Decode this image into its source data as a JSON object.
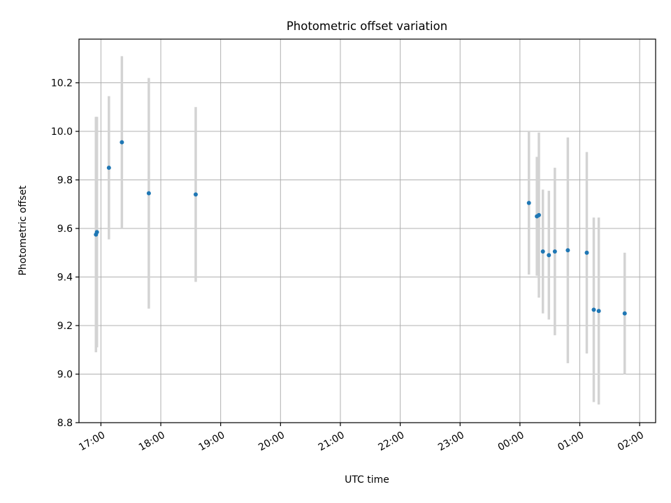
{
  "chart_data": {
    "type": "scatter",
    "title": "Photometric offset variation",
    "xlabel": "UTC time",
    "ylabel": "Photometric offset",
    "xlim": [
      "16:38",
      "02:16"
    ],
    "ylim": [
      8.8,
      10.38
    ],
    "grid": true,
    "x_ticks": [
      "17:00",
      "18:00",
      "19:00",
      "20:00",
      "21:00",
      "22:00",
      "23:00",
      "00:00",
      "01:00",
      "02:00"
    ],
    "y_ticks": [
      "8.8",
      "9.0",
      "9.2",
      "9.4",
      "9.6",
      "9.8",
      "10.0",
      "10.2"
    ],
    "colors": {
      "point": "#1f77b4",
      "errorbar": "#d3d3d3",
      "grid": "#b0b0b0"
    },
    "series": [
      {
        "points": [
          {
            "time": "16:55",
            "y": 9.575,
            "err": 0.485
          },
          {
            "time": "16:56",
            "y": 9.585,
            "err": 0.475
          },
          {
            "time": "17:08",
            "y": 9.85,
            "err": 0.295
          },
          {
            "time": "17:21",
            "y": 9.955,
            "err": 0.355
          },
          {
            "time": "17:48",
            "y": 9.745,
            "err": 0.475
          },
          {
            "time": "18:35",
            "y": 9.74,
            "err": 0.36
          },
          {
            "time": "00:09",
            "y": 9.705,
            "err": 0.295
          },
          {
            "time": "00:17",
            "y": 9.65,
            "err": 0.245
          },
          {
            "time": "00:19",
            "y": 9.655,
            "err": 0.34
          },
          {
            "time": "00:23",
            "y": 9.505,
            "err": 0.255
          },
          {
            "time": "00:29",
            "y": 9.49,
            "err": 0.265
          },
          {
            "time": "00:35",
            "y": 9.505,
            "err": 0.345
          },
          {
            "time": "00:48",
            "y": 9.51,
            "err": 0.465
          },
          {
            "time": "01:07",
            "y": 9.5,
            "err": 0.415
          },
          {
            "time": "01:14",
            "y": 9.265,
            "err": 0.38
          },
          {
            "time": "01:19",
            "y": 9.26,
            "err": 0.385
          },
          {
            "time": "01:45",
            "y": 9.25,
            "err": 0.25
          }
        ]
      }
    ]
  }
}
